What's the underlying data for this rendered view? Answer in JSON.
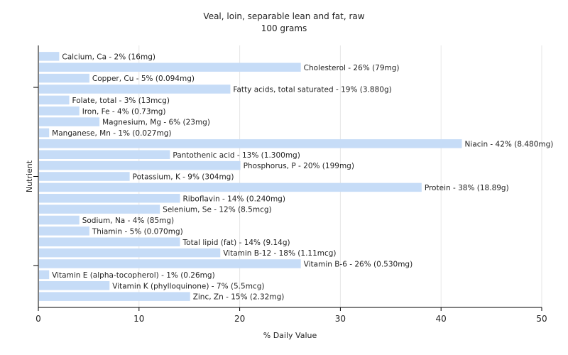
{
  "chart_data": {
    "type": "bar",
    "orientation": "horizontal",
    "title": "Veal, loin, separable lean and fat, raw",
    "subtitle": "100 grams",
    "xlabel": "% Daily Value",
    "ylabel": "Nutrient",
    "xlim": [
      0,
      50
    ],
    "xticks": [
      "0",
      "10",
      "20",
      "30",
      "40",
      "50"
    ],
    "grid": true,
    "bar_color": "#c6dcf7",
    "categories": [
      "Calcium, Ca",
      "Cholesterol",
      "Copper, Cu",
      "Fatty acids, total saturated",
      "Folate, total",
      "Iron, Fe",
      "Magnesium, Mg",
      "Manganese, Mn",
      "Niacin",
      "Pantothenic acid",
      "Phosphorus, P",
      "Potassium, K",
      "Protein",
      "Riboflavin",
      "Selenium, Se",
      "Sodium, Na",
      "Thiamin",
      "Total lipid (fat)",
      "Vitamin B-12",
      "Vitamin B-6",
      "Vitamin E (alpha-tocopherol)",
      "Vitamin K (phylloquinone)",
      "Zinc, Zn"
    ],
    "values": [
      2,
      26,
      5,
      19,
      3,
      4,
      6,
      1,
      42,
      13,
      20,
      9,
      38,
      14,
      12,
      4,
      5,
      14,
      18,
      26,
      1,
      7,
      15
    ],
    "labels": [
      "Calcium, Ca - 2% (16mg)",
      "Cholesterol - 26% (79mg)",
      "Copper, Cu - 5% (0.094mg)",
      "Fatty acids, total saturated - 19% (3.880g)",
      "Folate, total - 3% (13mcg)",
      "Iron, Fe - 4% (0.73mg)",
      "Magnesium, Mg - 6% (23mg)",
      "Manganese, Mn - 1% (0.027mg)",
      "Niacin - 42% (8.480mg)",
      "Pantothenic acid - 13% (1.300mg)",
      "Phosphorus, P - 20% (199mg)",
      "Potassium, K - 9% (304mg)",
      "Protein - 38% (18.89g)",
      "Riboflavin - 14% (0.240mg)",
      "Selenium, Se - 12% (8.5mcg)",
      "Sodium, Na - 4% (85mg)",
      "Thiamin - 5% (0.070mg)",
      "Total lipid (fat) - 14% (9.14g)",
      "Vitamin B-12 - 18% (1.11mcg)",
      "Vitamin B-6 - 26% (0.530mg)",
      "Vitamin E (alpha-tocopherol) - 1% (0.26mg)",
      "Vitamin K (phylloquinone) - 7% (5.5mcg)",
      "Zinc, Zn - 15% (2.32mg)"
    ]
  }
}
